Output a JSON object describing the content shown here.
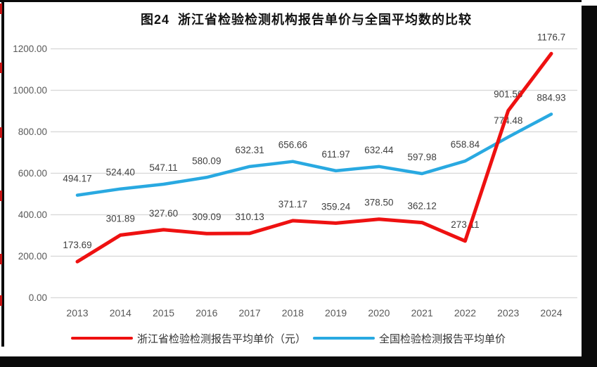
{
  "chart_data": {
    "type": "line",
    "title": "图24  浙江省检验检测机构报告单价与全国平均数的比较",
    "categories": [
      "2013",
      "2014",
      "2015",
      "2016",
      "2017",
      "2018",
      "2019",
      "2020",
      "2021",
      "2022",
      "2023",
      "2024"
    ],
    "series": [
      {
        "name": "浙江省检验检测报告平均单价（元）",
        "color": "#ee1111",
        "values": [
          173.69,
          301.89,
          327.6,
          309.09,
          310.13,
          371.17,
          359.24,
          378.5,
          362.12,
          273.11,
          901.56,
          1176.7
        ],
        "labels": [
          "173.69",
          "301.89",
          "327.60",
          "309.09",
          "310.13",
          "371.17",
          "359.24",
          "378.50",
          "362.12",
          "273.11",
          "901.56",
          "1176.7"
        ]
      },
      {
        "name": "全国检验检测报告平均单价",
        "color": "#29a9e1",
        "values": [
          494.17,
          524.4,
          547.11,
          580.09,
          632.31,
          656.66,
          611.97,
          632.44,
          597.98,
          658.84,
          774.48,
          884.93
        ],
        "labels": [
          "494.17",
          "524.40",
          "547.11",
          "580.09",
          "632.31",
          "656.66",
          "611.97",
          "632.44",
          "597.98",
          "658.84",
          "774.48",
          "884.93"
        ]
      }
    ],
    "ylim": [
      0,
      1200
    ],
    "ytick_step": 200,
    "ytick_labels": [
      "0.00",
      "200.00",
      "400.00",
      "600.00",
      "800.00",
      "1000.00",
      "1200.00"
    ],
    "grid": "horizontal",
    "legend_position": "bottom",
    "grid_color": "#d9d9d9",
    "axis_label_color": "#595959",
    "data_label_color": "#3f3f3f"
  }
}
